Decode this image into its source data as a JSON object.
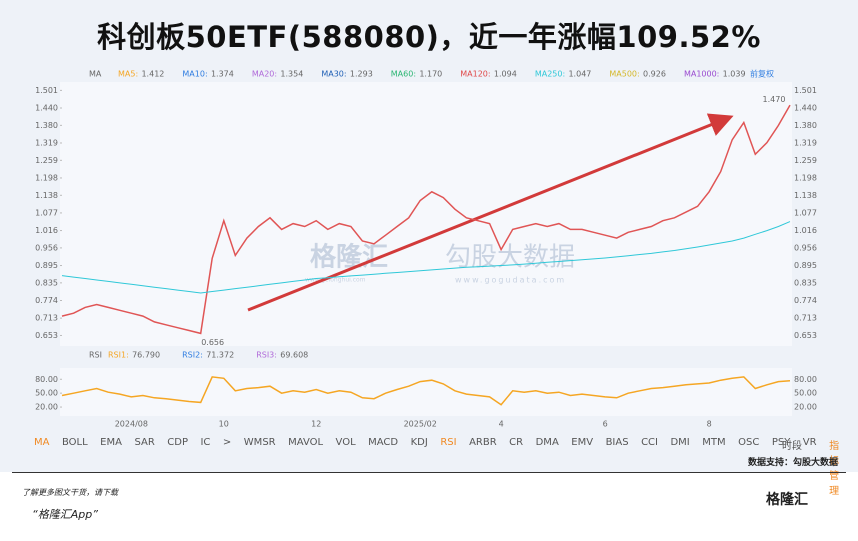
{
  "header": {
    "title": "科创板50ETF(588080)，近一年涨幅109.52%"
  },
  "chart_data": [
    {
      "type": "line",
      "indicator": "MA",
      "adjust": "前复权",
      "legend": [
        {
          "name": "MA5",
          "value": 1.412,
          "color": "#f5a623"
        },
        {
          "name": "MA10",
          "value": 1.374,
          "color": "#2f7de1"
        },
        {
          "name": "MA20",
          "value": 1.354,
          "color": "#b06ad9"
        },
        {
          "name": "MA30",
          "value": 1.293,
          "color": "#1f5fb5"
        },
        {
          "name": "MA60",
          "value": 1.17,
          "value_label": "1.170",
          "color": "#2bb673"
        },
        {
          "name": "MA120",
          "value": 1.094,
          "color": "#e04a4a"
        },
        {
          "name": "MA250",
          "value": 1.047,
          "color": "#2fc8d8"
        },
        {
          "name": "MA500",
          "value": 0.926,
          "color": "#d4b82a"
        },
        {
          "name": "MA1000",
          "value": 1.039,
          "color": "#9a4ad0"
        }
      ],
      "categories": [
        null,
        null,
        null,
        null,
        null,
        null,
        "2024/08",
        null,
        null,
        null,
        null,
        null,
        null,
        null,
        "10",
        null,
        null,
        null,
        null,
        null,
        null,
        null,
        "12",
        null,
        null,
        null,
        null,
        null,
        null,
        null,
        null,
        "2025/02",
        null,
        null,
        null,
        null,
        null,
        null,
        "4",
        null,
        null,
        null,
        null,
        null,
        null,
        null,
        null,
        "6",
        null,
        null,
        null,
        null,
        null,
        null,
        null,
        null,
        "8",
        null,
        null,
        null,
        null,
        null,
        null,
        null
      ],
      "series": [
        {
          "color": "#e05555",
          "values": [
            0.72,
            0.73,
            0.75,
            0.76,
            0.75,
            0.74,
            0.73,
            0.72,
            0.7,
            0.69,
            0.68,
            0.67,
            0.66,
            0.92,
            1.05,
            0.93,
            0.99,
            1.03,
            1.06,
            1.02,
            1.04,
            1.03,
            1.05,
            1.02,
            1.04,
            1.03,
            0.98,
            0.97,
            1.0,
            1.03,
            1.06,
            1.12,
            1.15,
            1.13,
            1.09,
            1.06,
            1.05,
            1.04,
            0.95,
            1.02,
            1.03,
            1.04,
            1.03,
            1.04,
            1.02,
            1.02,
            1.01,
            1.0,
            0.99,
            1.01,
            1.02,
            1.03,
            1.05,
            1.06,
            1.08,
            1.1,
            1.15,
            1.22,
            1.33,
            1.39,
            1.28,
            1.32,
            1.38,
            1.45
          ]
        },
        {
          "name": "MA250",
          "color": "#2fc8d8",
          "values": [
            0.86,
            0.855,
            0.85,
            0.845,
            0.84,
            0.835,
            0.83,
            0.825,
            0.82,
            0.815,
            0.81,
            0.805,
            0.8,
            0.805,
            0.81,
            0.815,
            0.82,
            0.825,
            0.83,
            0.835,
            0.84,
            0.845,
            0.85,
            0.853,
            0.856,
            0.859,
            0.862,
            0.865,
            0.868,
            0.871,
            0.874,
            0.877,
            0.88,
            0.883,
            0.886,
            0.889,
            0.891,
            0.893,
            0.895,
            0.897,
            0.9,
            0.903,
            0.906,
            0.909,
            0.912,
            0.915,
            0.918,
            0.921,
            0.925,
            0.929,
            0.933,
            0.937,
            0.942,
            0.947,
            0.953,
            0.959,
            0.966,
            0.973,
            0.98,
            0.99,
            1.003,
            1.016,
            1.03,
            1.047
          ]
        }
      ],
      "ylim": [
        0.62,
        1.53
      ],
      "yticks": [
        1.501,
        {
          "value": 1.44,
          "label": "1.440"
        },
        {
          "value": 1.38,
          "label": "1.380"
        },
        1.319,
        1.259,
        1.198,
        1.138,
        1.077,
        1.016,
        0.956,
        0.895,
        0.835,
        0.774,
        0.713,
        0.653
      ],
      "annotations": [
        {
          "value": 1.47,
          "label": "1.470"
        },
        {
          "value": 0.656,
          "label": "0.656"
        }
      ]
    },
    {
      "type": "line",
      "indicator": "RSI",
      "legend": [
        {
          "name": "RSI1",
          "value": 76.79,
          "value_label": "76.790",
          "color": "#f5a623"
        },
        {
          "name": "RSI2",
          "value": 71.372,
          "color": "#2f7de1"
        },
        {
          "name": "RSI3",
          "value": 69.608,
          "color": "#b06ad9"
        }
      ],
      "series": [
        {
          "name": "RSI1",
          "color": "#f5a623",
          "values": [
            45,
            50,
            55,
            60,
            52,
            48,
            42,
            45,
            40,
            38,
            35,
            32,
            30,
            85,
            82,
            55,
            60,
            62,
            65,
            50,
            55,
            52,
            58,
            50,
            55,
            52,
            40,
            38,
            50,
            58,
            65,
            75,
            78,
            70,
            55,
            48,
            45,
            42,
            25,
            55,
            52,
            55,
            50,
            52,
            45,
            48,
            45,
            42,
            40,
            50,
            55,
            60,
            62,
            65,
            68,
            70,
            72,
            78,
            82,
            85,
            60,
            68,
            75,
            77
          ]
        }
      ],
      "ylim": [
        5,
        100
      ],
      "yticks": [
        {
          "value": 80,
          "label": "80.00"
        },
        {
          "value": 50,
          "label": "50.00"
        },
        {
          "value": 20,
          "label": "20.00"
        }
      ]
    }
  ],
  "watermark": {
    "brand": "格隆汇",
    "brand_url": "www.gelonghui.com",
    "data_brand": "勾股大数据",
    "data_url": "www.gogudata.com"
  },
  "toolbar": [
    "MA",
    "BOLL",
    "EMA",
    "SAR",
    "CDP",
    "IC",
    ">",
    "WMSR",
    "MAVOL",
    "VOL",
    "MACD",
    "KDJ",
    "RSI",
    "ARBR",
    "CR",
    "DMA",
    "EMV",
    "BIAS",
    "CCI",
    "DMI",
    "MTM",
    "OSC",
    "PSY",
    "VR",
    "指标管理",
    "时段"
  ],
  "support": "数据支持：勾股大数据",
  "footer": {
    "line1": "了解更多图文干货，请下载",
    "line2": "“格隆汇App”",
    "logo": "格隆汇"
  }
}
